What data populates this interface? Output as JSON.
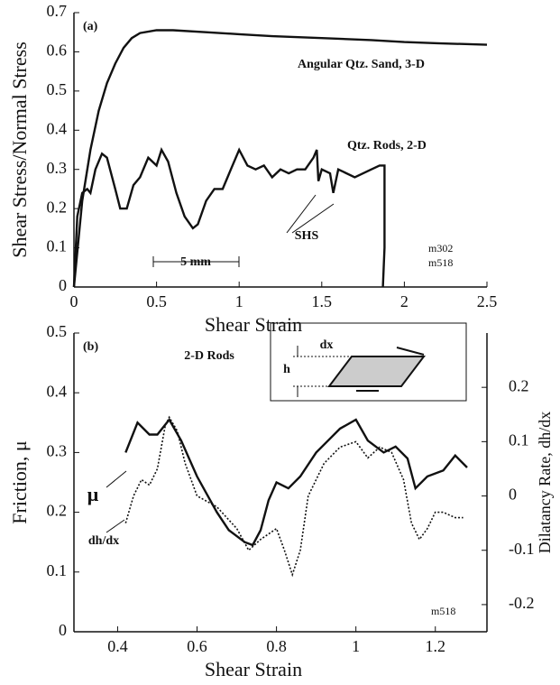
{
  "chart_data": [
    {
      "type": "line",
      "xlabel": "Shear Strain",
      "ylabel": "Shear Stress/Normal Stress",
      "xlim": [
        0,
        2.5
      ],
      "xticks": [
        0,
        0.5,
        1,
        1.5,
        2,
        2.5
      ],
      "ylim": [
        0,
        0.7
      ],
      "yticks": [
        0,
        0.1,
        0.2,
        0.3,
        0.4,
        0.5,
        0.6,
        0.7
      ],
      "series": [
        {
          "name": "Angular Qtz. Sand, 3-D",
          "color": "#111111",
          "style": "solid",
          "x": [
            0,
            0.05,
            0.1,
            0.15,
            0.2,
            0.25,
            0.3,
            0.35,
            0.4,
            0.5,
            0.6,
            0.8,
            1.0,
            1.2,
            1.5,
            1.8,
            2.0,
            2.2,
            2.5
          ],
          "values": [
            0,
            0.22,
            0.35,
            0.45,
            0.52,
            0.57,
            0.61,
            0.635,
            0.648,
            0.655,
            0.655,
            0.65,
            0.645,
            0.64,
            0.635,
            0.63,
            0.625,
            0.622,
            0.618
          ]
        },
        {
          "name": "Qtz. Rods, 2-D",
          "color": "#111111",
          "style": "solid",
          "x": [
            0,
            0.02,
            0.05,
            0.08,
            0.1,
            0.13,
            0.17,
            0.2,
            0.25,
            0.28,
            0.32,
            0.36,
            0.4,
            0.45,
            0.5,
            0.53,
            0.57,
            0.62,
            0.67,
            0.72,
            0.75,
            0.8,
            0.85,
            0.9,
            0.95,
            1.0,
            1.05,
            1.1,
            1.15,
            1.2,
            1.25,
            1.3,
            1.35,
            1.4,
            1.45,
            1.47,
            1.48,
            1.5,
            1.55,
            1.57,
            1.6,
            1.7,
            1.8,
            1.85,
            1.88,
            1.88,
            1.87
          ],
          "values": [
            0,
            0.18,
            0.24,
            0.25,
            0.24,
            0.3,
            0.34,
            0.33,
            0.25,
            0.2,
            0.2,
            0.26,
            0.28,
            0.33,
            0.31,
            0.35,
            0.32,
            0.24,
            0.18,
            0.15,
            0.16,
            0.22,
            0.25,
            0.25,
            0.3,
            0.35,
            0.31,
            0.3,
            0.31,
            0.28,
            0.3,
            0.29,
            0.3,
            0.3,
            0.33,
            0.35,
            0.27,
            0.3,
            0.29,
            0.24,
            0.3,
            0.28,
            0.3,
            0.31,
            0.31,
            0.1,
            0
          ]
        }
      ],
      "annotations": [
        "(a)",
        "SHS",
        "5 mm",
        "m302",
        "m518"
      ]
    },
    {
      "type": "line",
      "xlabel": "Shear Strain",
      "ylabel": "Friction, μ",
      "y2label": "Dilatancy Rate, dh/dx",
      "xlim": [
        0.29,
        1.33
      ],
      "xticks": [
        0.4,
        0.6,
        0.8,
        1,
        1.2
      ],
      "ylim": [
        0,
        0.5
      ],
      "yticks": [
        0,
        0.1,
        0.2,
        0.3,
        0.4,
        0.5
      ],
      "y2lim": [
        -0.25,
        0.3
      ],
      "y2ticks": [
        -0.2,
        -0.1,
        0,
        0.1,
        0.2
      ],
      "series": [
        {
          "name": "μ",
          "color": "#111111",
          "style": "solid",
          "x": [
            0.42,
            0.45,
            0.48,
            0.5,
            0.53,
            0.56,
            0.6,
            0.65,
            0.68,
            0.7,
            0.72,
            0.74,
            0.76,
            0.78,
            0.8,
            0.83,
            0.86,
            0.9,
            0.93,
            0.96,
            1.0,
            1.03,
            1.07,
            1.1,
            1.13,
            1.15,
            1.18,
            1.22,
            1.25,
            1.28
          ],
          "values": [
            0.3,
            0.35,
            0.33,
            0.33,
            0.355,
            0.32,
            0.26,
            0.2,
            0.17,
            0.16,
            0.15,
            0.145,
            0.17,
            0.22,
            0.25,
            0.24,
            0.26,
            0.3,
            0.32,
            0.34,
            0.355,
            0.32,
            0.3,
            0.31,
            0.29,
            0.24,
            0.26,
            0.27,
            0.295,
            0.275
          ]
        },
        {
          "name": "dh/dx",
          "color": "#111111",
          "style": "dotted",
          "axis": "y2",
          "x": [
            0.42,
            0.44,
            0.46,
            0.48,
            0.5,
            0.52,
            0.53,
            0.55,
            0.57,
            0.6,
            0.65,
            0.7,
            0.73,
            0.76,
            0.8,
            0.82,
            0.84,
            0.86,
            0.88,
            0.92,
            0.96,
            1.0,
            1.03,
            1.06,
            1.09,
            1.12,
            1.14,
            1.16,
            1.18,
            1.2,
            1.22,
            1.25,
            1.27
          ],
          "values": [
            -0.05,
            0.0,
            0.03,
            0.02,
            0.05,
            0.13,
            0.145,
            0.12,
            0.06,
            0.0,
            -0.02,
            -0.06,
            -0.1,
            -0.08,
            -0.06,
            -0.1,
            -0.145,
            -0.1,
            0.0,
            0.06,
            0.09,
            0.1,
            0.07,
            0.09,
            0.08,
            0.03,
            -0.05,
            -0.08,
            -0.06,
            -0.03,
            -0.03,
            -0.04,
            -0.04
          ]
        }
      ],
      "annotations": [
        "(b)",
        "2-D Rods",
        "m518",
        "dx",
        "h"
      ]
    }
  ]
}
